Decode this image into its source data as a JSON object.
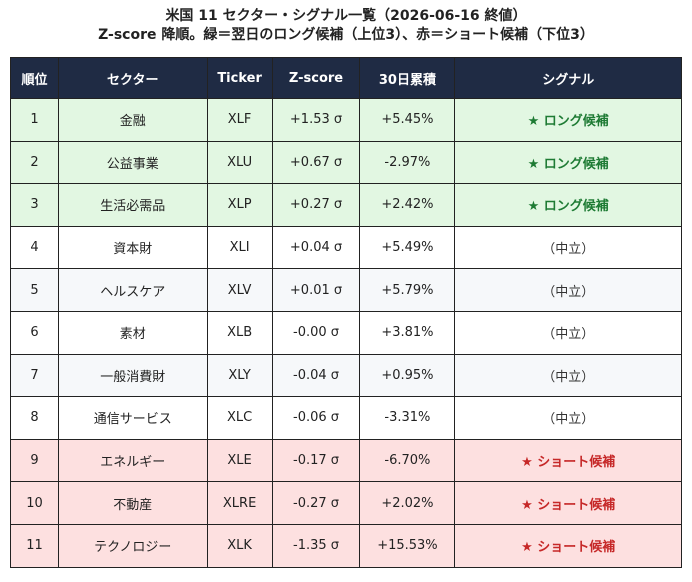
{
  "header": {
    "title": "米国 11 セクター・シグナル一覧（2026-06-16 終値）",
    "subtitle": "Z-score 降順。緑＝翌日のロング候補（上位3）、赤＝ショート候補（下位3）"
  },
  "table": {
    "header_background": "#1f2b44",
    "columns": [
      "順位",
      "セクター",
      "Ticker",
      "Z-score",
      "30日累積",
      "シグナル"
    ],
    "rows": [
      {
        "cells": [
          "1",
          "金融",
          "XLF",
          "+1.53 σ",
          "+5.45%",
          "★ ロング候補"
        ],
        "background": "#e2f7e2",
        "signal_color": "#1e7b34"
      },
      {
        "cells": [
          "2",
          "公益事業",
          "XLU",
          "+0.67 σ",
          "-2.97%",
          "★ ロング候補"
        ],
        "background": "#e2f7e2",
        "signal_color": "#1e7b34"
      },
      {
        "cells": [
          "3",
          "生活必需品",
          "XLP",
          "+0.27 σ",
          "+2.42%",
          "★ ロング候補"
        ],
        "background": "#e2f7e2",
        "signal_color": "#1e7b34"
      },
      {
        "cells": [
          "4",
          "資本財",
          "XLI",
          "+0.04 σ",
          "+5.49%",
          "（中立）"
        ],
        "background": "#ffffff",
        "signal_color": "#333333"
      },
      {
        "cells": [
          "5",
          "ヘルスケア",
          "XLV",
          "+0.01 σ",
          "+5.79%",
          "（中立）"
        ],
        "background": "#f6f8fa",
        "signal_color": "#333333"
      },
      {
        "cells": [
          "6",
          "素材",
          "XLB",
          "-0.00 σ",
          "+3.81%",
          "（中立）"
        ],
        "background": "#ffffff",
        "signal_color": "#333333"
      },
      {
        "cells": [
          "7",
          "一般消費財",
          "XLY",
          "-0.04 σ",
          "+0.95%",
          "（中立）"
        ],
        "background": "#f6f8fa",
        "signal_color": "#333333"
      },
      {
        "cells": [
          "8",
          "通信サービス",
          "XLC",
          "-0.06 σ",
          "-3.31%",
          "（中立）"
        ],
        "background": "#ffffff",
        "signal_color": "#333333"
      },
      {
        "cells": [
          "9",
          "エネルギー",
          "XLE",
          "-0.17 σ",
          "-6.70%",
          "★ ショート候補"
        ],
        "background": "#fde0e0",
        "signal_color": "#c62828"
      },
      {
        "cells": [
          "10",
          "不動産",
          "XLRE",
          "-0.27 σ",
          "+2.02%",
          "★ ショート候補"
        ],
        "background": "#fde0e0",
        "signal_color": "#c62828"
      },
      {
        "cells": [
          "11",
          "テクノロジー",
          "XLK",
          "-1.35 σ",
          "+15.53%",
          "★ ショート候補"
        ],
        "background": "#fde0e0",
        "signal_color": "#c62828"
      }
    ]
  }
}
